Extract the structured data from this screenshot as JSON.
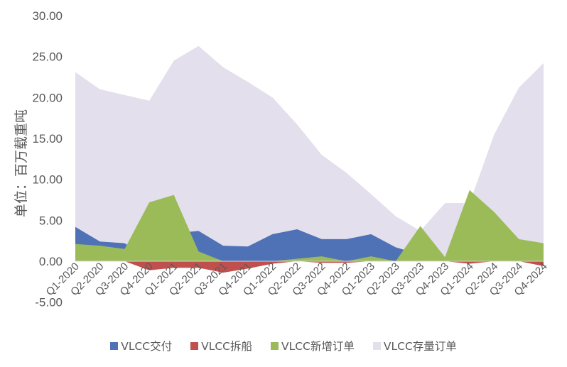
{
  "chart_data": {
    "type": "area",
    "ylabel": "单位：百万载重吨",
    "ylim": [
      -5,
      30
    ],
    "yticks": [
      "-5.00",
      "0.00",
      "5.00",
      "10.00",
      "15.00",
      "20.00",
      "25.00",
      "30.00"
    ],
    "categories": [
      "Q1-2020",
      "Q2-2020",
      "Q3-2020",
      "Q4-2020",
      "Q1-2021",
      "Q2-2021",
      "Q3-2021",
      "Q4-2021",
      "Q1-2022",
      "Q2-2022",
      "Q3-2022",
      "Q4-2022",
      "Q1-2023",
      "Q2-2023",
      "Q3-2023",
      "Q4-2023",
      "Q1-2024",
      "Q2-2024",
      "Q3-2024",
      "Q4-2024"
    ],
    "legend_position": "bottom",
    "series": [
      {
        "name": "VLCC存量订单",
        "color": "#E3DFEC",
        "values": [
          23.1,
          21.0,
          20.3,
          19.6,
          24.5,
          26.3,
          23.7,
          21.9,
          20.0,
          16.7,
          13.0,
          10.8,
          8.2,
          5.5,
          3.7,
          7.1,
          7.1,
          15.5,
          21.2,
          24.2
        ]
      },
      {
        "name": "VLCC交付",
        "color": "#4F72B6",
        "values": [
          4.2,
          2.4,
          2.2,
          0.2,
          3.4,
          3.7,
          1.9,
          1.8,
          3.3,
          3.9,
          2.7,
          2.7,
          3.3,
          1.7,
          0.8,
          0.5,
          0.2,
          0.3,
          0.2,
          0.5
        ]
      },
      {
        "name": "VLCC新增订单",
        "color": "#9BBB59",
        "values": [
          2.1,
          1.9,
          1.5,
          7.2,
          8.1,
          1.2,
          0.0,
          0.0,
          0.0,
          0.3,
          0.6,
          0.0,
          0.6,
          0.0,
          4.3,
          0.5,
          8.7,
          6.0,
          2.7,
          2.2
        ]
      },
      {
        "name": "VLCC拆船",
        "color": "#C0504D",
        "values": [
          0.0,
          0.0,
          0.0,
          -1.1,
          -0.8,
          -0.8,
          -1.4,
          -0.9,
          -0.3,
          0.0,
          -0.2,
          -0.2,
          0.0,
          0.0,
          0.0,
          0.0,
          -0.3,
          0.0,
          0.0,
          -0.6
        ]
      }
    ]
  },
  "legend": [
    {
      "label": "VLCC交付",
      "color": "#4F72B6"
    },
    {
      "label": "VLCC拆船",
      "color": "#C0504D"
    },
    {
      "label": "VLCC新增订单",
      "color": "#9BBB59"
    },
    {
      "label": "VLCC存量订单",
      "color": "#E3DFEC"
    }
  ]
}
